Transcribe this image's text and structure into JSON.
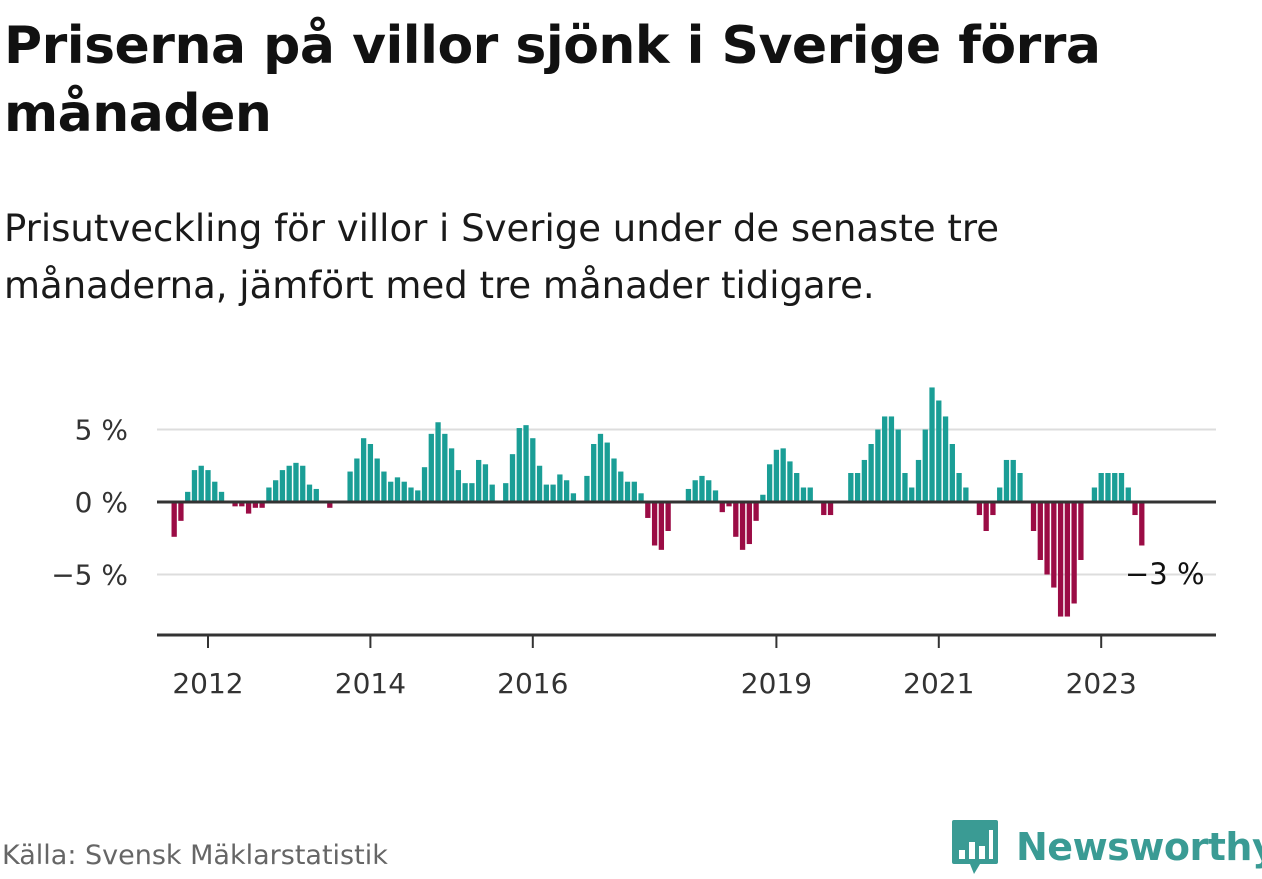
{
  "header": {
    "title": "Priserna på villor sjönk i Sverige förra månaden",
    "subtitle": "Prisutveckling för villor i Sverige under de senaste tre månaderna, jämfört med tre månader tidigare."
  },
  "footer": {
    "source": "Källa: Svensk Mäklarstatistik",
    "brand": "Newsworthy"
  },
  "colors": {
    "positive": "#1a9e96",
    "negative": "#9b0c45",
    "grid": "#dddddd",
    "axis": "#333333",
    "brand": "#3a9b94"
  },
  "icons": {
    "logo": "bar-chart-speech-icon"
  },
  "chart_data": {
    "type": "bar",
    "ylim": [
      -9,
      8.2
    ],
    "y_ticks": [
      {
        "value": 5,
        "label": "5 %"
      },
      {
        "value": 0,
        "label": "0 %"
      },
      {
        "value": -5,
        "label": "−5 %"
      }
    ],
    "x_ticks": [
      {
        "year": 2012,
        "label": "2012"
      },
      {
        "year": 2014,
        "label": "2014"
      },
      {
        "year": 2016,
        "label": "2016"
      },
      {
        "year": 2019,
        "label": "2019"
      },
      {
        "year": 2021,
        "label": "2021"
      },
      {
        "year": 2023,
        "label": "2023"
      }
    ],
    "start": "2011-08",
    "values": [
      -2.4,
      -1.3,
      0.7,
      2.2,
      2.5,
      2.2,
      1.4,
      0.7,
      0,
      -0.3,
      -0.3,
      -0.8,
      -0.4,
      -0.4,
      1.0,
      1.5,
      2.2,
      2.5,
      2.7,
      2.5,
      1.2,
      0.9,
      0,
      -0.4,
      0,
      0,
      2.1,
      3.0,
      4.4,
      4.0,
      3.0,
      2.1,
      1.4,
      1.7,
      1.4,
      1.0,
      0.8,
      2.4,
      4.7,
      5.5,
      4.7,
      3.7,
      2.2,
      1.3,
      1.3,
      2.9,
      2.6,
      1.2,
      0,
      1.3,
      3.3,
      5.1,
      5.3,
      4.4,
      2.5,
      1.2,
      1.2,
      1.9,
      1.5,
      0.6,
      0,
      1.8,
      4.0,
      4.7,
      4.1,
      3.0,
      2.1,
      1.4,
      1.4,
      0.6,
      -1.1,
      -3.0,
      -3.3,
      -2.0,
      0,
      0,
      0.9,
      1.5,
      1.8,
      1.5,
      0.8,
      -0.7,
      -0.3,
      -2.4,
      -3.3,
      -2.9,
      -1.3,
      0.5,
      2.6,
      3.6,
      3.7,
      2.8,
      2.0,
      1.0,
      1.0,
      0,
      -0.9,
      -0.9,
      0,
      0,
      2.0,
      2.0,
      2.9,
      4.0,
      5.0,
      5.9,
      5.9,
      5.0,
      2.0,
      1.0,
      2.9,
      5.0,
      7.9,
      7.0,
      5.9,
      4.0,
      2.0,
      1.0,
      0,
      -0.9,
      -2.0,
      -0.9,
      1.0,
      2.9,
      2.9,
      2.0,
      0,
      -2.0,
      -4.0,
      -5.0,
      -5.9,
      -7.9,
      -7.9,
      -7.0,
      -4.0,
      0,
      1.0,
      2.0,
      2.0,
      2.0,
      2.0,
      1.0,
      -0.9,
      -3.0
    ],
    "last_label": "−3 %"
  }
}
